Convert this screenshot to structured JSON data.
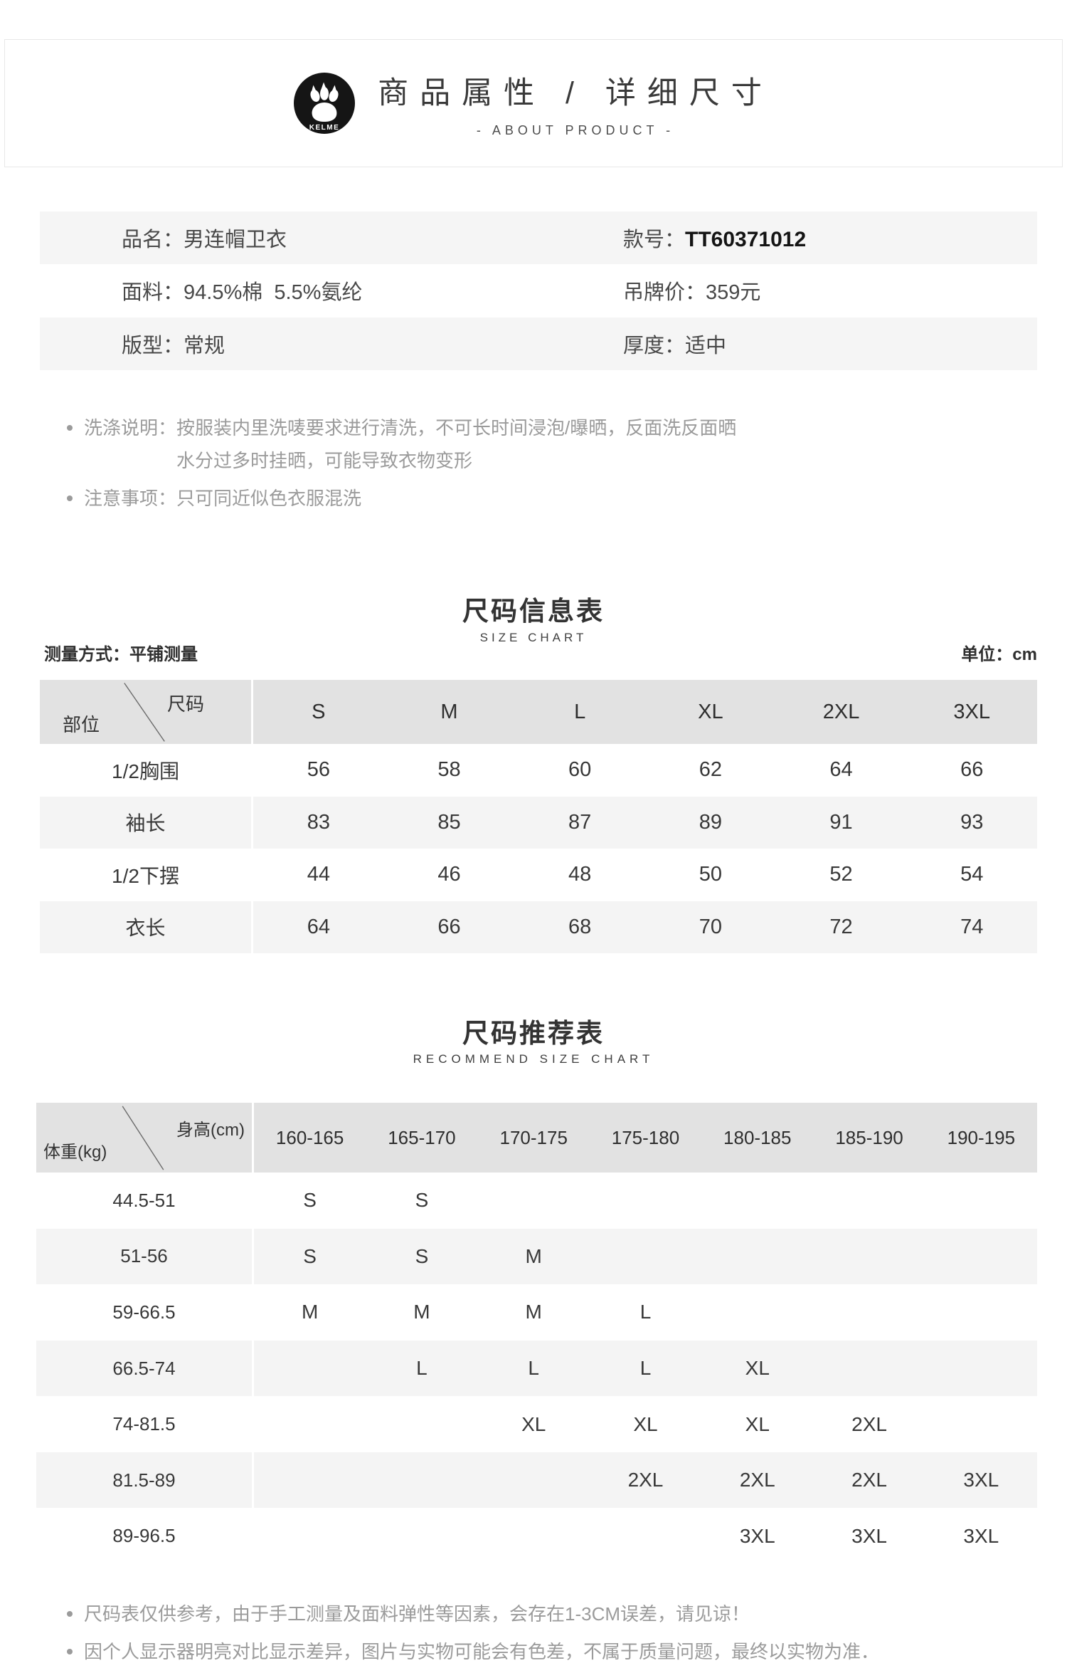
{
  "header": {
    "logo_text": "KELME",
    "title": "商品属性 / 详细尺寸",
    "subtitle": "- ABOUT PRODUCT -"
  },
  "product": {
    "rows": [
      {
        "left": {
          "label": "品名：",
          "value": "男连帽卫衣"
        },
        "right": {
          "label": "款号：",
          "value": "TT60371012"
        }
      },
      {
        "left": {
          "label": "面料：",
          "value": "94.5%棉  5.5%氨纶"
        },
        "right": {
          "label": "吊牌价：",
          "value": "359元"
        }
      },
      {
        "left": {
          "label": "版型：",
          "value": "常规"
        },
        "right": {
          "label": "厚度：",
          "value": "适中"
        }
      }
    ]
  },
  "notes_top": [
    {
      "label": "洗涤说明：",
      "lines": [
        "按服装内里洗唛要求进行清洗，不可长时间浸泡/曝晒，反面洗反面晒",
        "水分过多时挂晒，可能导致衣物变形"
      ]
    },
    {
      "label": "注意事项：",
      "lines": [
        "只可同近似色衣服混洗"
      ]
    }
  ],
  "size_chart": {
    "title": "尺码信息表",
    "subtitle": "SIZE CHART",
    "measure_label": "测量方式：平铺测量",
    "unit_label": "单位：cm",
    "corner_top": "尺码",
    "corner_bottom": "部位",
    "columns": [
      "S",
      "M",
      "L",
      "XL",
      "2XL",
      "3XL"
    ],
    "rows": [
      {
        "label": "1/2胸围",
        "values": [
          "56",
          "58",
          "60",
          "62",
          "64",
          "66"
        ]
      },
      {
        "label": "袖长",
        "values": [
          "83",
          "85",
          "87",
          "89",
          "91",
          "93"
        ]
      },
      {
        "label": "1/2下摆",
        "values": [
          "44",
          "46",
          "48",
          "50",
          "52",
          "54"
        ]
      },
      {
        "label": "衣长",
        "values": [
          "64",
          "66",
          "68",
          "70",
          "72",
          "74"
        ]
      }
    ]
  },
  "recommend_chart": {
    "title": "尺码推荐表",
    "subtitle": "RECOMMEND SIZE  CHART",
    "corner_top": "身高(cm)",
    "corner_bottom": "体重(kg)",
    "columns": [
      "160-165",
      "165-170",
      "170-175",
      "175-180",
      "180-185",
      "185-190",
      "190-195"
    ],
    "rows": [
      {
        "label": "44.5-51",
        "values": [
          "S",
          "S",
          "",
          "",
          "",
          "",
          ""
        ]
      },
      {
        "label": "51-56",
        "values": [
          "S",
          "S",
          "M",
          "",
          "",
          "",
          ""
        ]
      },
      {
        "label": "59-66.5",
        "values": [
          "M",
          "M",
          "M",
          "L",
          "",
          "",
          ""
        ]
      },
      {
        "label": "66.5-74",
        "values": [
          "",
          "L",
          "L",
          "L",
          "XL",
          "",
          ""
        ]
      },
      {
        "label": "74-81.5",
        "values": [
          "",
          "",
          "XL",
          "XL",
          "XL",
          "2XL",
          ""
        ]
      },
      {
        "label": "81.5-89",
        "values": [
          "",
          "",
          "",
          "2XL",
          "2XL",
          "2XL",
          "3XL"
        ]
      },
      {
        "label": "89-96.5",
        "values": [
          "",
          "",
          "",
          "",
          "3XL",
          "3XL",
          "3XL"
        ]
      }
    ]
  },
  "notes_bottom": [
    "尺码表仅供参考，由于手工测量及面料弹性等因素，会存在1-3CM误差，请见谅！",
    "因个人显示器明亮对比显示差异，图片与实物可能会有色差，不属于质量问题，最终以实物为准．"
  ],
  "colors": {
    "row_gray": "#f5f5f5",
    "table_header_gray": "#e2e2e2",
    "table_alt_gray": "#f4f4f4",
    "note_gray": "#9b9b9b",
    "logo_black": "#151515",
    "border_gray": "#e8e8e8"
  }
}
